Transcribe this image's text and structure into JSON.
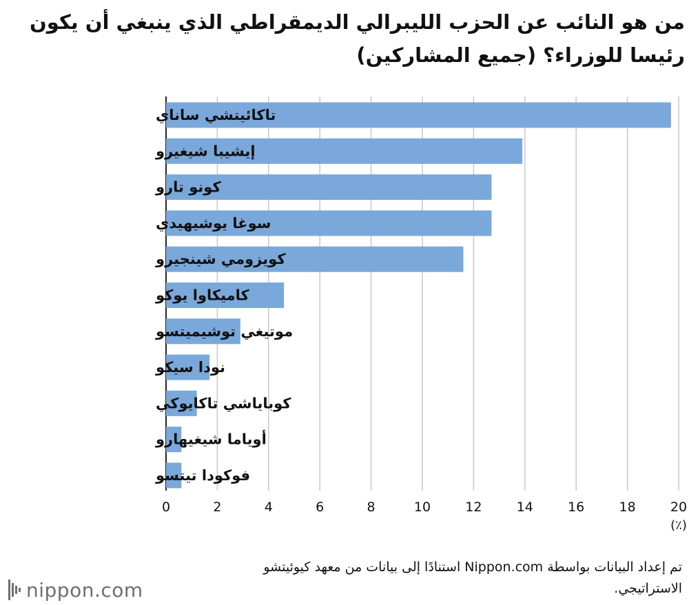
{
  "title": "من هو النائب عن الحزب الليبرالي الديمقراطي الذي ينبغي أن يكون رئيسا للوزراء؟ (جميع المشاركين)",
  "source_note": "تم إعداد البيانات بواسطة Nippon.com استنادًا إلى بيانات من معهد كيوئيتشو الاستراتيجي.",
  "logo": {
    "text": "nippon.com",
    "icon": "nippon-logo-mark"
  },
  "colors": {
    "bar": "#7aa8da",
    "grid": "#c8c8c8",
    "axis": "#222222"
  },
  "chart_data": {
    "type": "bar",
    "orientation": "horizontal",
    "categories": [
      "تاكائيتشي ساناي",
      "إيشيبا شيغيرو",
      "كونو تارو",
      "سوغا يوشيهيدي",
      "كويزومي شينجيرو",
      "كاميكاوا يوكو",
      "موتيغي توشيميتسو",
      "نودا سيكو",
      "كوباياشي تاكايوكي",
      "أوياما شيغيهارو",
      "فوكودا تيتسو"
    ],
    "values": [
      19.7,
      13.9,
      12.7,
      12.7,
      11.6,
      4.6,
      2.9,
      1.7,
      1.2,
      0.6,
      0.6
    ],
    "xlim": [
      0,
      20
    ],
    "xticks": [
      "0",
      "2",
      "4",
      "6",
      "8",
      "10",
      "12",
      "14",
      "16",
      "18",
      "20"
    ],
    "unit_label": "(٪)",
    "grid": true,
    "title": "",
    "xlabel": "",
    "ylabel": ""
  }
}
